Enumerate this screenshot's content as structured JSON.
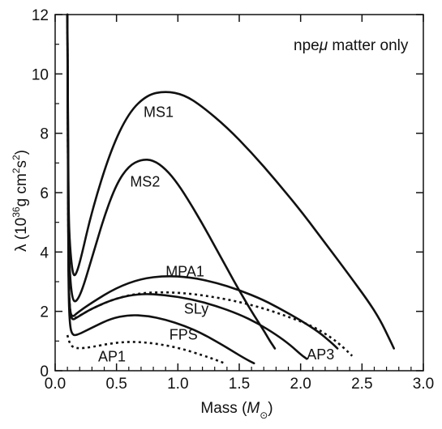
{
  "chart_data": {
    "type": "line",
    "xlabel": "Mass (",
    "xlabel_symbol": "M",
    "xlabel_sub": "⊙",
    "xlabel_close": ")",
    "ylabel": "λ (10",
    "ylabel_exp": "36",
    "ylabel_mid": "g cm",
    "ylabel_exp2": "2",
    "ylabel_s": "s",
    "ylabel_exp3": "2",
    "ylabel_close": ")",
    "annotation": {
      "prefix": "npe",
      "mu": "μ",
      "suffix": " matter only"
    },
    "xlim": [
      0,
      3
    ],
    "ylim": [
      0,
      12
    ],
    "xticks": [
      "0.0",
      "0.5",
      "1.0",
      "1.5",
      "2.0",
      "2.5",
      "3.0"
    ],
    "xtick_values": [
      0,
      0.5,
      1.0,
      1.5,
      2.0,
      2.5,
      3.0
    ],
    "yticks": [
      "0",
      "2",
      "4",
      "6",
      "8",
      "10",
      "12"
    ],
    "ytick_values": [
      0,
      2,
      4,
      6,
      8,
      10,
      12
    ],
    "grid": false,
    "series": [
      {
        "name": "MS1",
        "style": "solid",
        "label_at": [
          0.72,
          8.55
        ],
        "points": [
          [
            0.1,
            12
          ],
          [
            0.105,
            8.0
          ],
          [
            0.11,
            5.3
          ],
          [
            0.12,
            4.2
          ],
          [
            0.14,
            3.35
          ],
          [
            0.16,
            3.15
          ],
          [
            0.2,
            3.6
          ],
          [
            0.3,
            5.4
          ],
          [
            0.45,
            7.4
          ],
          [
            0.6,
            8.7
          ],
          [
            0.75,
            9.3
          ],
          [
            0.9,
            9.42
          ],
          [
            1.05,
            9.3
          ],
          [
            1.2,
            8.9
          ],
          [
            1.4,
            8.2
          ],
          [
            1.6,
            7.35
          ],
          [
            1.8,
            6.4
          ],
          [
            2.0,
            5.4
          ],
          [
            2.2,
            4.3
          ],
          [
            2.4,
            3.2
          ],
          [
            2.55,
            2.35
          ],
          [
            2.65,
            1.7
          ],
          [
            2.72,
            1.1
          ],
          [
            2.76,
            0.75
          ]
        ]
      },
      {
        "name": "MS2",
        "style": "solid",
        "label_at": [
          0.61,
          6.2
        ],
        "points": [
          [
            0.1,
            12
          ],
          [
            0.105,
            7.5
          ],
          [
            0.11,
            4.5
          ],
          [
            0.12,
            3.2
          ],
          [
            0.14,
            2.4
          ],
          [
            0.17,
            2.3
          ],
          [
            0.22,
            2.7
          ],
          [
            0.3,
            3.8
          ],
          [
            0.4,
            5.2
          ],
          [
            0.5,
            6.3
          ],
          [
            0.6,
            6.9
          ],
          [
            0.7,
            7.12
          ],
          [
            0.8,
            7.1
          ],
          [
            0.9,
            6.8
          ],
          [
            1.0,
            6.3
          ],
          [
            1.1,
            5.65
          ],
          [
            1.2,
            4.95
          ],
          [
            1.3,
            4.2
          ],
          [
            1.4,
            3.45
          ],
          [
            1.5,
            2.7
          ],
          [
            1.6,
            2.0
          ],
          [
            1.7,
            1.35
          ],
          [
            1.75,
            1.0
          ],
          [
            1.79,
            0.75
          ]
        ]
      },
      {
        "name": "MPA1",
        "style": "solid",
        "label_at": [
          0.9,
          3.18
        ],
        "points": [
          [
            0.1,
            12
          ],
          [
            0.105,
            6.0
          ],
          [
            0.11,
            3.0
          ],
          [
            0.12,
            2.0
          ],
          [
            0.14,
            1.8
          ],
          [
            0.18,
            1.95
          ],
          [
            0.3,
            2.3
          ],
          [
            0.5,
            2.8
          ],
          [
            0.7,
            3.1
          ],
          [
            0.9,
            3.2
          ],
          [
            1.1,
            3.15
          ],
          [
            1.3,
            2.98
          ],
          [
            1.5,
            2.72
          ],
          [
            1.7,
            2.38
          ],
          [
            1.85,
            2.05
          ],
          [
            2.0,
            1.7
          ],
          [
            2.15,
            1.3
          ],
          [
            2.25,
            0.95
          ],
          [
            2.3,
            0.75
          ]
        ]
      },
      {
        "name": "AP3",
        "style": "dashed",
        "label_at": [
          2.05,
          0.38
        ],
        "points": [
          [
            0.1,
            12
          ],
          [
            0.105,
            6.0
          ],
          [
            0.11,
            3.0
          ],
          [
            0.12,
            2.0
          ],
          [
            0.14,
            1.75
          ],
          [
            0.18,
            1.8
          ],
          [
            0.3,
            2.1
          ],
          [
            0.5,
            2.45
          ],
          [
            0.7,
            2.62
          ],
          [
            0.9,
            2.65
          ],
          [
            1.1,
            2.6
          ],
          [
            1.3,
            2.48
          ],
          [
            1.5,
            2.32
          ],
          [
            1.7,
            2.1
          ],
          [
            1.9,
            1.82
          ],
          [
            2.1,
            1.5
          ],
          [
            2.25,
            1.12
          ],
          [
            2.35,
            0.78
          ],
          [
            2.42,
            0.5
          ]
        ]
      },
      {
        "name": "SLy",
        "style": "solid",
        "label_at": [
          1.05,
          1.92
        ],
        "points": [
          [
            0.1,
            12
          ],
          [
            0.105,
            6.0
          ],
          [
            0.11,
            3.0
          ],
          [
            0.12,
            1.95
          ],
          [
            0.14,
            1.7
          ],
          [
            0.18,
            1.8
          ],
          [
            0.3,
            2.1
          ],
          [
            0.5,
            2.45
          ],
          [
            0.7,
            2.6
          ],
          [
            0.9,
            2.55
          ],
          [
            1.1,
            2.42
          ],
          [
            1.3,
            2.2
          ],
          [
            1.5,
            1.9
          ],
          [
            1.65,
            1.6
          ],
          [
            1.8,
            1.22
          ],
          [
            1.92,
            0.85
          ],
          [
            2.0,
            0.55
          ],
          [
            2.05,
            0.4
          ]
        ]
      },
      {
        "name": "FPS",
        "style": "solid",
        "label_at": [
          0.93,
          1.05
        ],
        "points": [
          [
            0.1,
            12
          ],
          [
            0.105,
            5.0
          ],
          [
            0.11,
            2.5
          ],
          [
            0.12,
            1.5
          ],
          [
            0.14,
            1.2
          ],
          [
            0.18,
            1.2
          ],
          [
            0.3,
            1.45
          ],
          [
            0.45,
            1.75
          ],
          [
            0.6,
            1.88
          ],
          [
            0.75,
            1.85
          ],
          [
            0.9,
            1.72
          ],
          [
            1.05,
            1.52
          ],
          [
            1.2,
            1.25
          ],
          [
            1.35,
            0.9
          ],
          [
            1.45,
            0.65
          ],
          [
            1.55,
            0.4
          ],
          [
            1.62,
            0.25
          ]
        ]
      },
      {
        "name": "AP1",
        "style": "dashed",
        "label_at": [
          0.35,
          0.32
        ],
        "points": [
          [
            0.1,
            1.2
          ],
          [
            0.12,
            0.9
          ],
          [
            0.15,
            0.78
          ],
          [
            0.2,
            0.75
          ],
          [
            0.3,
            0.8
          ],
          [
            0.45,
            0.92
          ],
          [
            0.6,
            0.98
          ],
          [
            0.75,
            0.95
          ],
          [
            0.9,
            0.86
          ],
          [
            1.05,
            0.72
          ],
          [
            1.2,
            0.52
          ],
          [
            1.3,
            0.38
          ],
          [
            1.38,
            0.25
          ]
        ]
      }
    ]
  }
}
